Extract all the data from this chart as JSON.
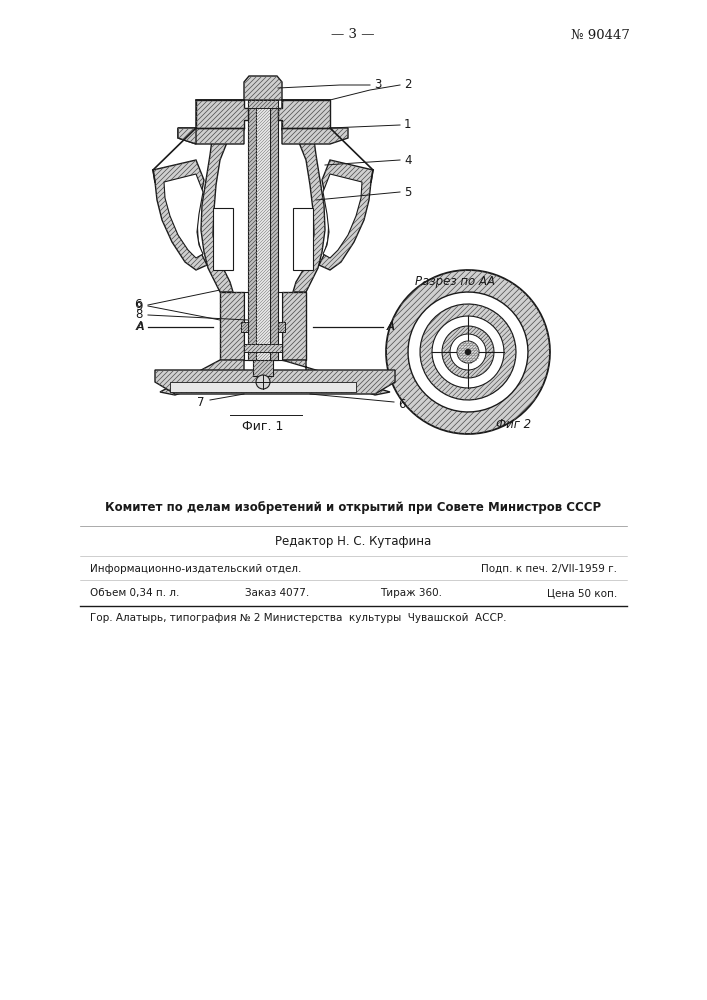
{
  "page_num": "— 3 —",
  "patent_num": "№ 90447",
  "fig1_caption": "Фиг. 1",
  "fig2_label": "Фиг 2",
  "section_label": "Разрез по АА",
  "committee_text": "Комитет по делам изобретений и открытий при Совете Министров СССР",
  "editor_text": "Редактор Н. С. Кутафина",
  "info_left1": "Информационно-издательский отдел.",
  "info_right1": "Подп. к печ. 2/VII-1959 г.",
  "info_col1": "Объем 0,34 п. л.",
  "info_col2": "Заказ 4077.",
  "info_col3": "Тираж 360.",
  "info_col4": "Цена 50 коп.",
  "footer": "Гор. Алатырь, типография № 2 Министерства  культуры  Чувашской  АССР.",
  "bg": "#ffffff",
  "dark": "#1a1a1a",
  "gray_fill": "#c8c8c8",
  "gray_hatch": "#555555",
  "white": "#ffffff"
}
